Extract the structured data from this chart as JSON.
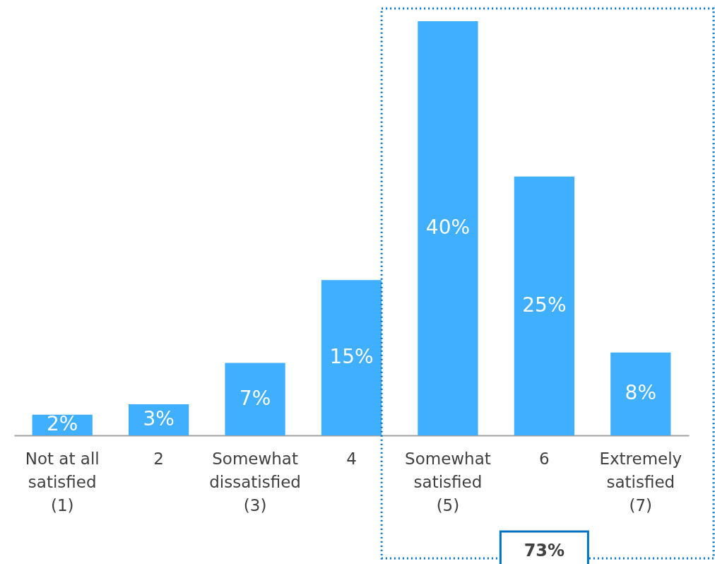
{
  "chart_data": {
    "type": "bar",
    "categories": [
      "Not at all\nsatisfied\n(1)",
      "2",
      "Somewhat\ndissatisfied\n(3)",
      "4",
      "Somewhat\nsatisfied\n(5)",
      "6",
      "Extremely\nsatisfied\n(7)"
    ],
    "values": [
      2,
      3,
      7,
      15,
      40,
      25,
      8
    ],
    "value_labels": [
      "2%",
      "3%",
      "7%",
      "15%",
      "40%",
      "25%",
      "8%"
    ],
    "color": "#40affe",
    "annotations": [
      "73%"
    ],
    "grid": false,
    "tick_labels": "x"
  }
}
